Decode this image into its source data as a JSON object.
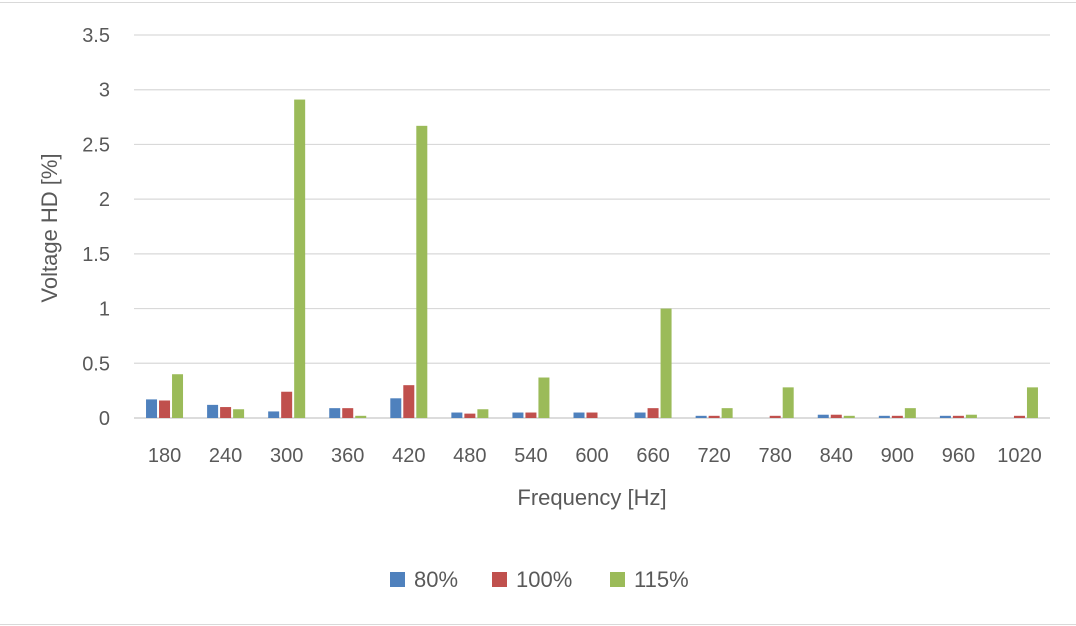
{
  "chart_data": {
    "type": "bar",
    "categories": [
      "180",
      "240",
      "300",
      "360",
      "420",
      "480",
      "540",
      "600",
      "660",
      "720",
      "780",
      "840",
      "900",
      "960",
      "1020"
    ],
    "series": [
      {
        "name": "80%",
        "color": "#4f81bd",
        "values": [
          0.17,
          0.12,
          0.06,
          0.09,
          0.18,
          0.05,
          0.05,
          0.05,
          0.05,
          0.02,
          0,
          0.03,
          0.02,
          0.02,
          0
        ]
      },
      {
        "name": "100%",
        "color": "#c0504d",
        "values": [
          0.16,
          0.1,
          0.24,
          0.09,
          0.3,
          0.04,
          0.05,
          0.05,
          0.09,
          0.02,
          0.02,
          0.03,
          0.02,
          0.02,
          0.02
        ]
      },
      {
        "name": "115%",
        "color": "#9bbb59",
        "values": [
          0.4,
          0.08,
          2.91,
          0.02,
          2.67,
          0.08,
          0.37,
          0,
          1.0,
          0.09,
          0.28,
          0.02,
          0.09,
          0.03,
          0.28
        ]
      }
    ],
    "xlabel": "Frequency [Hz]",
    "ylabel": "Voltage HD  [%]",
    "ylim": [
      0,
      3.5
    ],
    "yticks": [
      "0",
      "0.5",
      "1",
      "1.5",
      "2",
      "2.5",
      "3",
      "3.5"
    ],
    "grid": true,
    "legend_position": "bottom"
  }
}
